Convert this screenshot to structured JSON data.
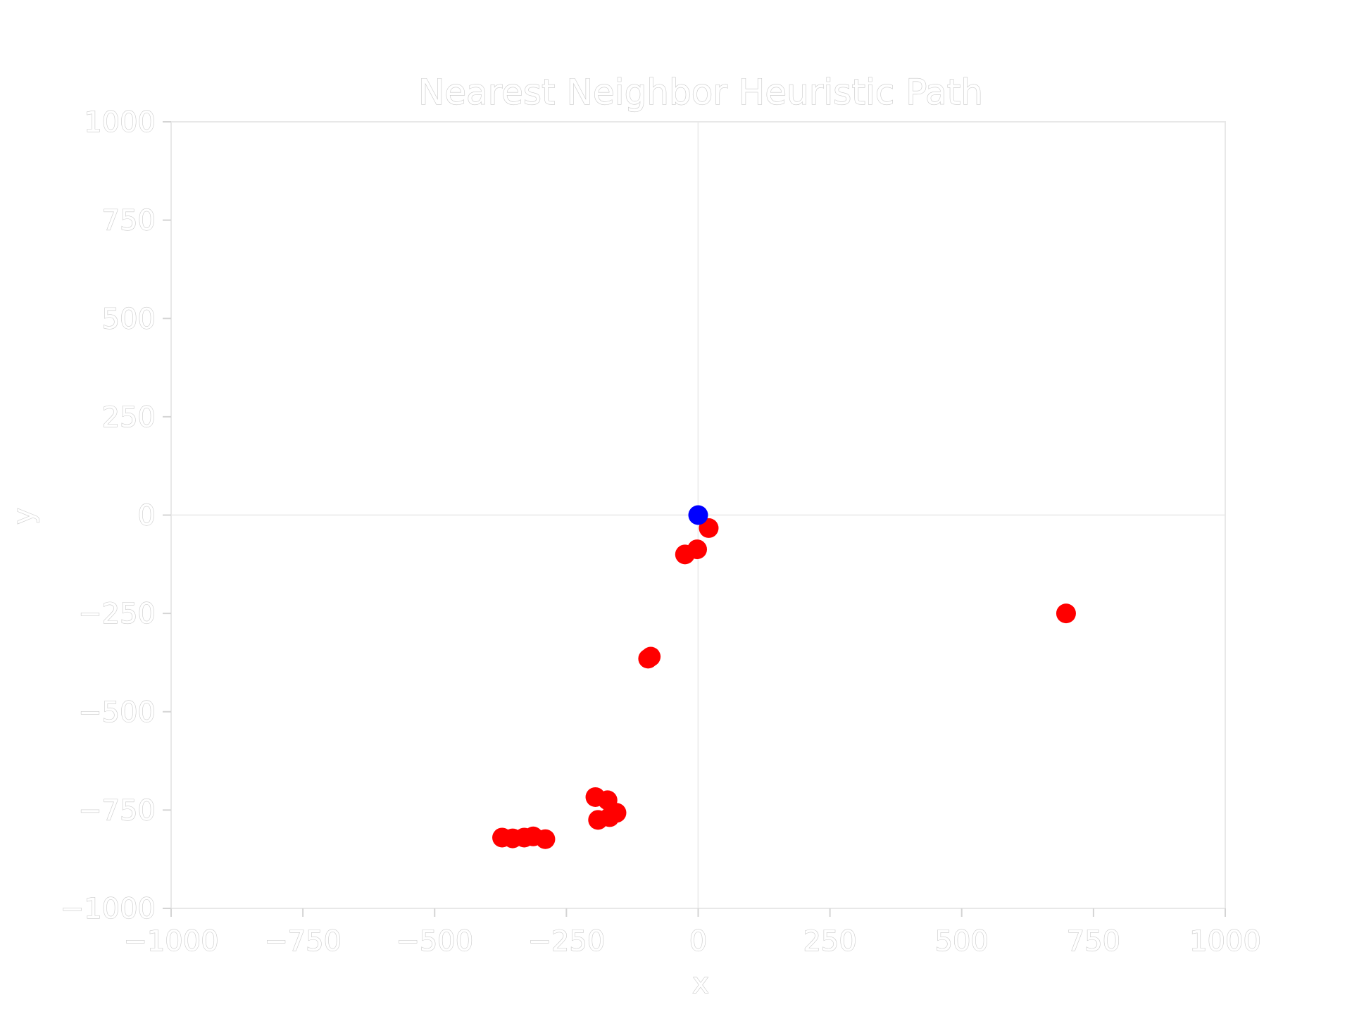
{
  "chart_data": {
    "type": "scatter",
    "title": "Nearest Neighbor Heuristic Path",
    "xlabel": "x",
    "ylabel": "y",
    "xlim": [
      -1000,
      1000
    ],
    "ylim": [
      -1000,
      1000
    ],
    "xticks": [
      -1000,
      -750,
      -500,
      -250,
      0,
      250,
      500,
      750,
      1000
    ],
    "yticks": [
      -1000,
      -750,
      -500,
      -250,
      0,
      250,
      500,
      750,
      1000
    ],
    "xtick_labels": [
      "−1000",
      "−750",
      "−500",
      "−250",
      "0",
      "250",
      "500",
      "750",
      "1000"
    ],
    "ytick_labels": [
      "−1000",
      "−750",
      "−500",
      "−250",
      "0",
      "250",
      "500",
      "750",
      "1000"
    ],
    "grid": false,
    "reference_lines": {
      "x": 0,
      "y": 0
    },
    "series": [
      {
        "color": "#ff0000",
        "points": [
          {
            "x": 20,
            "y": -33
          },
          {
            "x": -2,
            "y": -87
          },
          {
            "x": -25,
            "y": -100
          },
          {
            "x": -95,
            "y": -365
          },
          {
            "x": -90,
            "y": -360
          },
          {
            "x": -195,
            "y": -717
          },
          {
            "x": -172,
            "y": -725
          },
          {
            "x": -155,
            "y": -757
          },
          {
            "x": -168,
            "y": -768
          },
          {
            "x": -190,
            "y": -775
          },
          {
            "x": -372,
            "y": -820
          },
          {
            "x": -352,
            "y": -822
          },
          {
            "x": -330,
            "y": -820
          },
          {
            "x": -313,
            "y": -817
          },
          {
            "x": -290,
            "y": -824
          },
          {
            "x": 698,
            "y": -250
          }
        ]
      },
      {
        "color": "#0000ff",
        "points": [
          {
            "x": 0,
            "y": 0
          }
        ]
      }
    ]
  }
}
